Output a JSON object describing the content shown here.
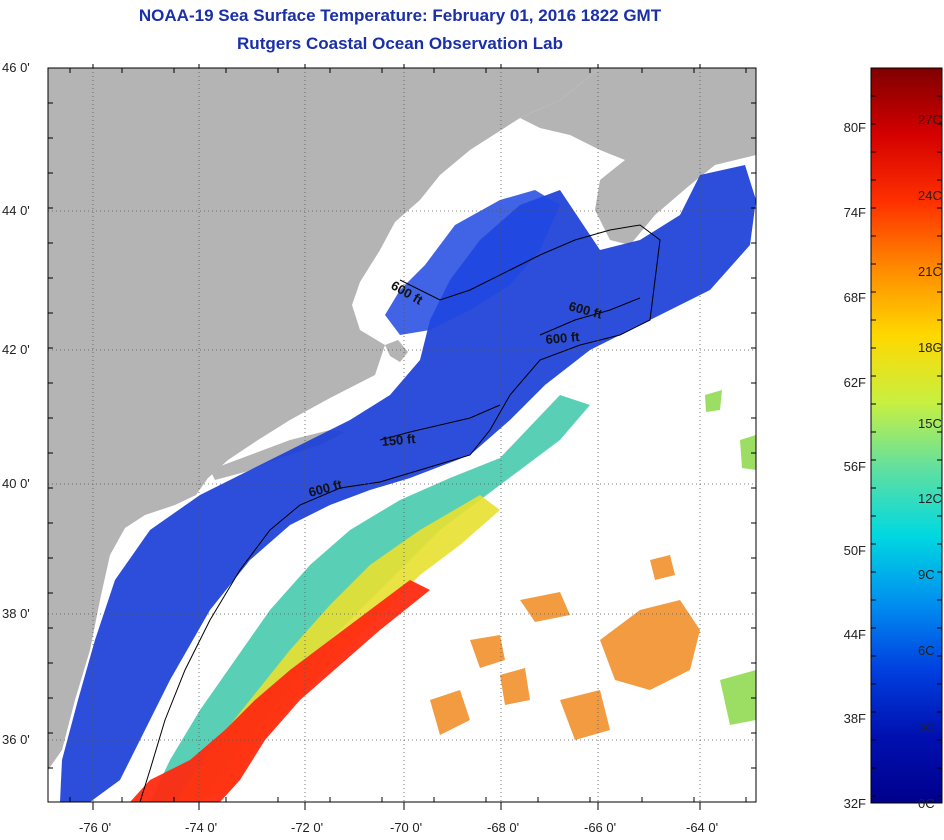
{
  "title": {
    "line1": "NOAA-19 Sea Surface Temperature:  February 01, 2016 1822 GMT",
    "line2": "Rutgers Coastal Ocean Observation Lab"
  },
  "map": {
    "latitude_ticks": [
      "46 0'",
      "44 0'",
      "42 0'",
      "40 0'",
      "38 0'",
      "36 0'"
    ],
    "longitude_ticks": [
      "-76 0'",
      "-74 0'",
      "-72 0'",
      "-70 0'",
      "-68 0'",
      "-66 0'",
      "-64 0'"
    ],
    "contour_labels": [
      "600 ft",
      "600 ft",
      "600 ft",
      "150 ft",
      "600 ft"
    ],
    "colors": {
      "land": "#b4b4b4",
      "cloud": "#ffffff",
      "cold": "#1a3fd8",
      "warm": "#ff2a10"
    }
  },
  "colorbar": {
    "fahrenheit_labels": [
      "80F",
      "74F",
      "68F",
      "62F",
      "56F",
      "50F",
      "44F",
      "38F",
      "32F"
    ],
    "celsius_labels": [
      "27C",
      "24C",
      "21C",
      "18C",
      "15C",
      "12C",
      "9C",
      "6C",
      "3C",
      "0C"
    ],
    "gradient": [
      "#7f0000",
      "#d40000",
      "#ff3000",
      "#ff8a00",
      "#ffd800",
      "#c8f040",
      "#60e0a0",
      "#00d8e0",
      "#0090f0",
      "#0040e0",
      "#0010b0",
      "#00008c"
    ]
  }
}
